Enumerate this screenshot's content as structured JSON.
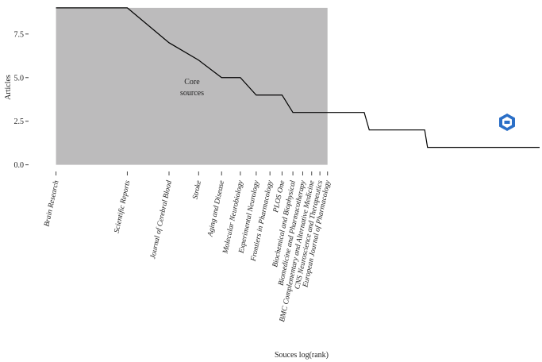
{
  "chart_data": {
    "type": "line",
    "xlabel": "Souces log(rank)",
    "ylabel": "Articles",
    "x": [
      1,
      2,
      3,
      4,
      5,
      6,
      7,
      8,
      9,
      10,
      20,
      21,
      36,
      37,
      110
    ],
    "values": [
      9,
      9,
      7,
      6,
      5,
      5,
      4,
      4,
      4,
      3,
      3,
      2,
      2,
      1,
      1
    ],
    "color": "#000000",
    "xscale": "log",
    "xlim": [
      0.79,
      110
    ],
    "ylim": [
      -0.2,
      9.45
    ],
    "yticks": [
      {
        "value": 0,
        "label": "0.0"
      },
      {
        "value": 2.5,
        "label": "2.5"
      },
      {
        "value": 5,
        "label": "5.0"
      },
      {
        "value": 7.5,
        "label": "7.5"
      }
    ],
    "core_zone": {
      "x": [
        1,
        14
      ],
      "y": 9,
      "color": "#bcbbbc",
      "label": "Core\nsources"
    },
    "sources": [
      "Brain Research",
      "Scientific Reports",
      "Journal of Cerebral Blood",
      "Stroke",
      "Aging and Disease",
      "Molecular Neurobiology",
      "Experimental Neurology",
      "Frontiers in Pharmacology",
      "PLOS One",
      "Biochemical and Biophysical",
      "Biomedicine and Pharmacotherapy",
      "BMC Complementary and Alternative Medicine",
      "CNS Neuroscience and Therapeutics",
      "European Journal of Pharmacology"
    ]
  }
}
